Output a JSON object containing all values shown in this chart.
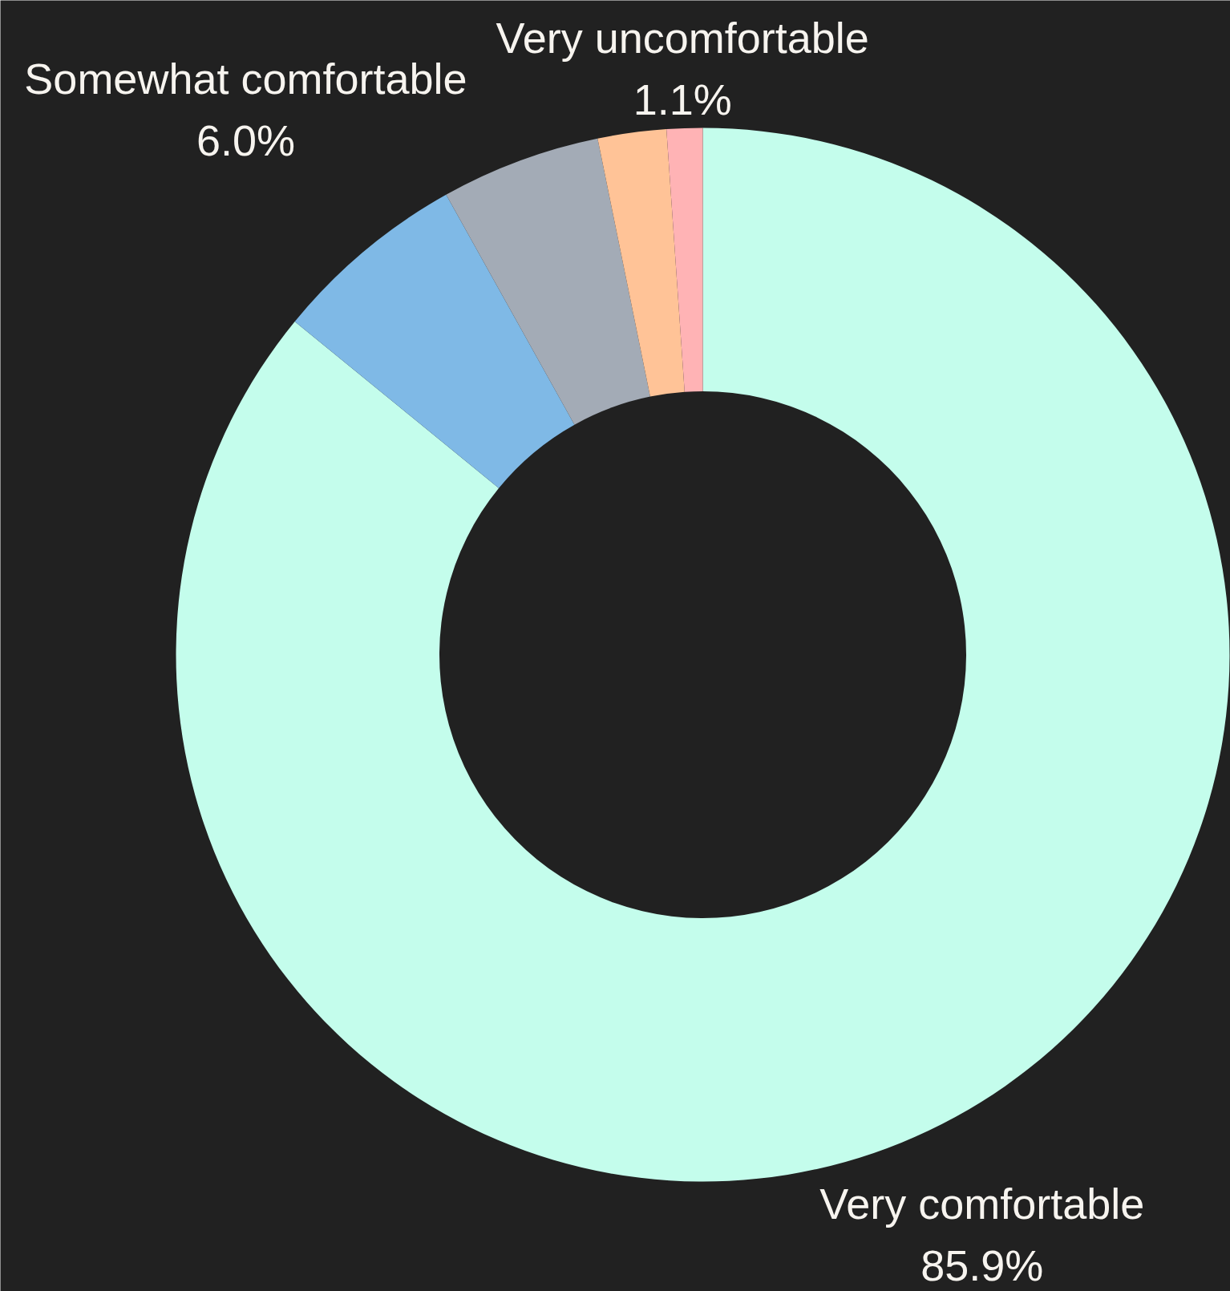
{
  "chart_data": {
    "type": "donut",
    "categories": [
      "Very comfortable",
      "Somewhat comfortable",
      null,
      null,
      "Very uncomfortable"
    ],
    "values": [
      85.9,
      6.0,
      4.9,
      2.1,
      1.1
    ],
    "colors": [
      "#c4fdec",
      "#7fb9e6",
      "#a3abb6",
      "#ffc397",
      "#ffb3b5"
    ],
    "value_labels": [
      "85.9%",
      "6.0%",
      null,
      null,
      "1.1%"
    ]
  }
}
